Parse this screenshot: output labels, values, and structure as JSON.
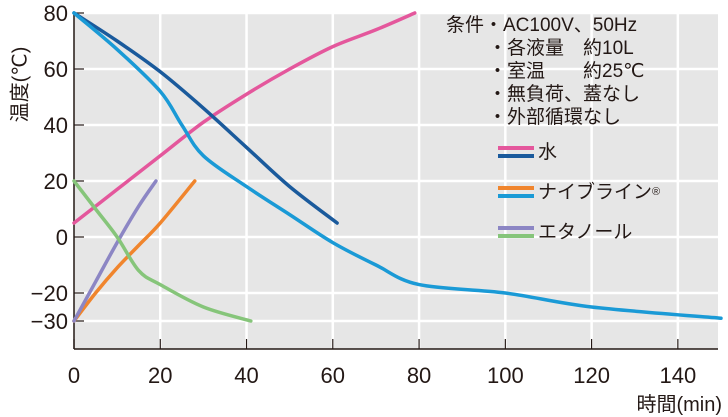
{
  "chart_data": {
    "type": "line",
    "title": "",
    "xlabel": "時間(min)",
    "ylabel": "温度(℃)",
    "xlim": [
      0,
      150
    ],
    "ylim": [
      -40,
      80
    ],
    "xticks": [
      0,
      20,
      40,
      60,
      80,
      100,
      120,
      140
    ],
    "yticks": [
      80,
      60,
      40,
      20,
      0,
      -20,
      -30
    ],
    "grid": true,
    "legend_placement": "top-right",
    "conditions": [
      "条件・AC100V、50Hz",
      "・各液量　約10L",
      "・室温　　約25℃",
      "・無負荷、蓋なし",
      "・外部循環なし"
    ],
    "legend": [
      {
        "label": "水",
        "colors": [
          "#e4579c",
          "#1a5a9c"
        ]
      },
      {
        "label": "ナイブライン",
        "sup": "®",
        "colors": [
          "#f0852d",
          "#1a9ad6"
        ]
      },
      {
        "label": "エタノール",
        "colors": [
          "#8c86c4",
          "#86c57a"
        ]
      }
    ],
    "series": [
      {
        "name": "水 加熱",
        "color": "#e4579c",
        "x": [
          0,
          10,
          20,
          30,
          40,
          50,
          60,
          70,
          79
        ],
        "y": [
          5,
          17,
          29,
          41,
          51,
          60,
          68,
          74,
          80
        ]
      },
      {
        "name": "水 冷却",
        "color": "#1a5a9c",
        "x": [
          0,
          10,
          20,
          30,
          40,
          50,
          61
        ],
        "y": [
          80,
          70,
          59,
          46,
          32,
          18,
          5
        ]
      },
      {
        "name": "ナイブライン 冷却",
        "color": "#1a9ad6",
        "x": [
          0,
          10,
          20,
          25,
          30,
          40,
          50,
          60,
          70,
          80,
          100,
          120,
          150
        ],
        "y": [
          80,
          67,
          52,
          40,
          29,
          18,
          8,
          -2,
          -10,
          -17,
          -20,
          -25,
          -29
        ]
      },
      {
        "name": "ナイブライン 加熱",
        "color": "#f0852d",
        "x": [
          0,
          5,
          10,
          15,
          20,
          28
        ],
        "y": [
          -30,
          -20,
          -11,
          -3,
          5,
          20
        ]
      },
      {
        "name": "エタノール 加熱",
        "color": "#8c86c4",
        "x": [
          0,
          5,
          10,
          15,
          19
        ],
        "y": [
          -30,
          -16,
          -2,
          11,
          20
        ]
      },
      {
        "name": "エタノール 冷却",
        "color": "#86c57a",
        "x": [
          0,
          5,
          10,
          15,
          20,
          30,
          41
        ],
        "y": [
          20,
          10,
          0,
          -12,
          -17,
          -25,
          -30
        ]
      }
    ]
  }
}
